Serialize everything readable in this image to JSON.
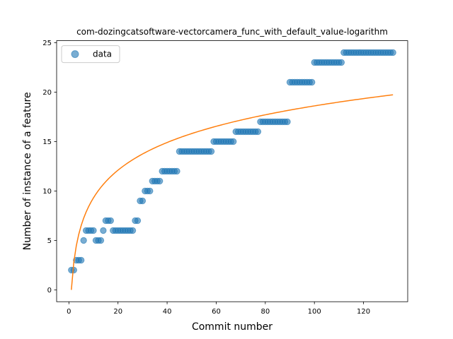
{
  "chart_data": {
    "type": "scatter",
    "title": "com-dozingcatsoftware-vectorcamera_func_with_default_value-logarithm",
    "xlabel": "Commit number",
    "ylabel": "Number of instance of a feature",
    "xlim": [
      -5,
      138
    ],
    "ylim": [
      -1.2,
      25.2
    ],
    "xticks": [
      0,
      20,
      40,
      60,
      80,
      100,
      120
    ],
    "yticks": [
      0,
      5,
      10,
      15,
      20,
      25
    ],
    "legend": {
      "position": "top-left",
      "entries": [
        "data"
      ]
    },
    "grid": false,
    "colors": {
      "points": "#1f77b4",
      "fit": "#ff7f0e"
    },
    "series": [
      {
        "name": "data",
        "kind": "scatter",
        "x": [
          1,
          2,
          3,
          4,
          5,
          6,
          7,
          8,
          9,
          10,
          11,
          12,
          13,
          14,
          15,
          16,
          17,
          18,
          19,
          20,
          21,
          22,
          23,
          24,
          25,
          26,
          27,
          28,
          29,
          30,
          31,
          32,
          33,
          34,
          35,
          36,
          37,
          38,
          39,
          40,
          41,
          42,
          43,
          44,
          45,
          46,
          47,
          48,
          49,
          50,
          51,
          52,
          53,
          54,
          55,
          56,
          57,
          58,
          59,
          60,
          61,
          62,
          63,
          64,
          65,
          66,
          67,
          68,
          69,
          70,
          71,
          72,
          73,
          74,
          75,
          76,
          77,
          78,
          79,
          80,
          81,
          82,
          83,
          84,
          85,
          86,
          87,
          88,
          89,
          90,
          91,
          92,
          93,
          94,
          95,
          96,
          97,
          98,
          99,
          100,
          101,
          102,
          103,
          104,
          105,
          106,
          107,
          108,
          109,
          110,
          111,
          112,
          113,
          114,
          115,
          116,
          117,
          118,
          119,
          120,
          121,
          122,
          123,
          124,
          125,
          126,
          127,
          128,
          129,
          130,
          131,
          132
        ],
        "y": [
          2,
          2,
          3,
          3,
          3,
          5,
          6,
          6,
          6,
          6,
          5,
          5,
          5,
          6,
          7,
          7,
          7,
          6,
          6,
          6,
          6,
          6,
          6,
          6,
          6,
          6,
          7,
          7,
          9,
          9,
          10,
          10,
          10,
          11,
          11,
          11,
          11,
          12,
          12,
          12,
          12,
          12,
          12,
          12,
          14,
          14,
          14,
          14,
          14,
          14,
          14,
          14,
          14,
          14,
          14,
          14,
          14,
          14,
          15,
          15,
          15,
          15,
          15,
          15,
          15,
          15,
          15,
          16,
          16,
          16,
          16,
          16,
          16,
          16,
          16,
          16,
          16,
          17,
          17,
          17,
          17,
          17,
          17,
          17,
          17,
          17,
          17,
          17,
          17,
          21,
          21,
          21,
          21,
          21,
          21,
          21,
          21,
          21,
          21,
          23,
          23,
          23,
          23,
          23,
          23,
          23,
          23,
          23,
          23,
          23,
          23,
          24,
          24,
          24,
          24,
          24,
          24,
          24,
          24,
          24,
          24,
          24,
          24,
          24,
          24,
          24,
          24,
          24,
          24,
          24,
          24,
          24
        ]
      },
      {
        "kind": "line",
        "function": "logarithmic fit",
        "a": 0,
        "b": 4.04
      }
    ]
  }
}
